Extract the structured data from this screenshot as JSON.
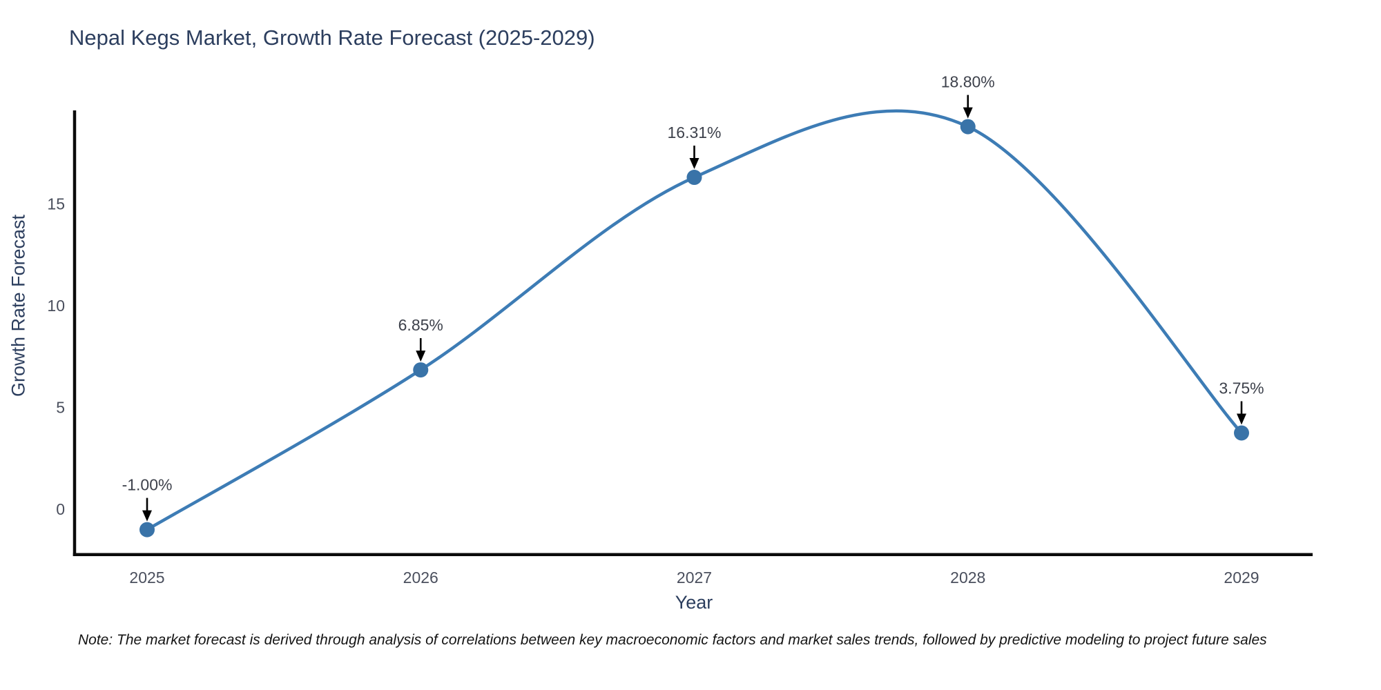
{
  "note": "Note: The market forecast is derived through analysis of correlations between key macroeconomic factors and market sales trends, followed by predictive modeling to project future sales",
  "chart_data": {
    "type": "line",
    "title": "Nepal Kegs Market, Growth Rate Forecast (2025-2029)",
    "xlabel": "Year",
    "ylabel": "Growth Rate Forecast",
    "categories": [
      "2025",
      "2026",
      "2027",
      "2028",
      "2029"
    ],
    "series": [
      {
        "name": "Growth Rate Forecast",
        "values": [
          -1.0,
          6.85,
          16.31,
          18.8,
          3.75
        ]
      }
    ],
    "point_labels": [
      "-1.00%",
      "6.85%",
      "16.31%",
      "18.80%",
      "3.75%"
    ],
    "yticks": [
      0,
      5,
      10,
      15
    ],
    "ylim": [
      -2.2,
      19.6
    ],
    "curve": "spline",
    "grid": false,
    "legend_position": "none",
    "colors": {
      "line": "#3d7cb5",
      "marker": "#3973a8",
      "axis": "#0b0b0b",
      "annotation_arrow": "#000000",
      "title_text": "#2c3e5e",
      "tick_text": "#4a4f5d",
      "annotation_text": "#3d414b",
      "note_text": "#141414",
      "background": "#ffffff"
    }
  }
}
